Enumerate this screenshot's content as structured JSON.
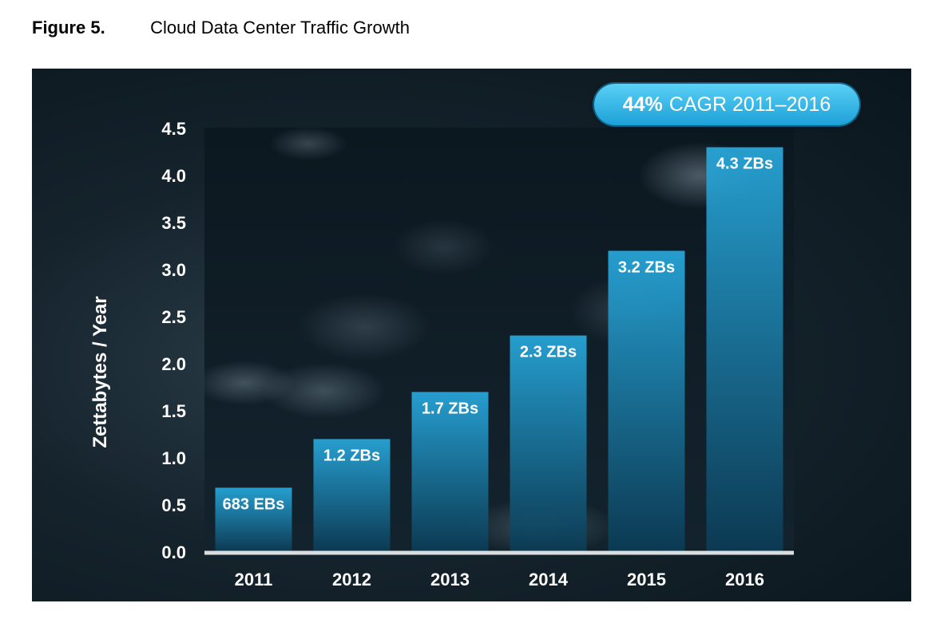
{
  "caption": {
    "figure_number": "Figure 5.",
    "title": "Cloud Data Center Traffic Growth"
  },
  "badge": {
    "percent": "44%",
    "text": "CAGR 2011–2016"
  },
  "colors": {
    "bar_top": "#28a9dd",
    "bar_bottom": "#0b3b55",
    "background": "#15232c",
    "badge": "#36b8e8",
    "baseline": "#d8dde0"
  },
  "chart_data": {
    "type": "bar",
    "categories": [
      "2011",
      "2012",
      "2013",
      "2014",
      "2015",
      "2016"
    ],
    "values": [
      0.683,
      1.2,
      1.7,
      2.3,
      3.2,
      4.3
    ],
    "data_labels": [
      "683 EBs",
      "1.2 ZBs",
      "1.7 ZBs",
      "2.3 ZBs",
      "3.2 ZBs",
      "4.3 ZBs"
    ],
    "ylabel": "Zettabytes / Year",
    "xlabel": "",
    "ylim": [
      0,
      4.5
    ],
    "yticks": [
      "0.0",
      "0.5",
      "1.0",
      "1.5",
      "2.0",
      "2.5",
      "3.0",
      "3.5",
      "4.0",
      "4.5"
    ],
    "grid": false,
    "legend": "none"
  }
}
